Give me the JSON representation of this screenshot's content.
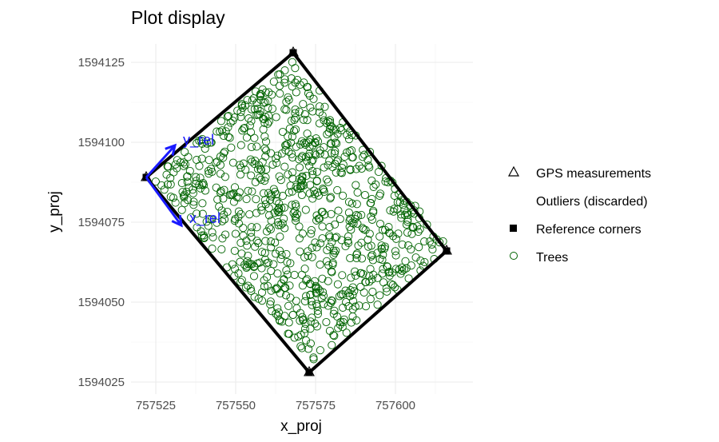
{
  "chart_data": {
    "type": "scatter",
    "title": "Plot display",
    "xlabel": "x_proj",
    "ylabel": "y_proj",
    "xlim": [
      757518,
      757617
    ],
    "ylim": [
      1594024,
      1594128
    ],
    "x_ticks": [
      757525,
      757550,
      757575,
      757600
    ],
    "x_tick_labels": [
      "757525",
      "757550",
      "757575",
      "757600"
    ],
    "y_ticks": [
      1594025,
      1594050,
      1594075,
      1594100,
      1594125
    ],
    "y_tick_labels": [
      "1594025",
      "1594050",
      "1594075",
      "1594100",
      "1594125"
    ],
    "grid": true,
    "legend_position": "right",
    "legend": [
      {
        "label": "GPS measurements",
        "symbol": "open-triangle"
      },
      {
        "label": "Outliers (discarded)",
        "symbol": "none"
      },
      {
        "label": "Reference corners",
        "symbol": "filled-square"
      },
      {
        "label": "Trees",
        "symbol": "open-circle"
      }
    ],
    "reference_corners": [
      {
        "x": 757522,
        "y": 1594089
      },
      {
        "x": 757568,
        "y": 1594128
      },
      {
        "x": 757616,
        "y": 1594066
      },
      {
        "x": 757573,
        "y": 1594028
      }
    ],
    "gps_measurements": [
      {
        "x": 757522,
        "y": 1594089
      },
      {
        "x": 757568,
        "y": 1594128
      },
      {
        "x": 757616,
        "y": 1594066
      },
      {
        "x": 757573,
        "y": 1594028
      }
    ],
    "axes_arrows": [
      {
        "label": "y_rel",
        "from": {
          "x": 757522,
          "y": 1594089
        },
        "to": {
          "x": 757531,
          "y": 1594099
        }
      },
      {
        "label": "x_rel",
        "from": {
          "x": 757522,
          "y": 1594089
        },
        "to": {
          "x": 757533,
          "y": 1594074
        }
      }
    ],
    "trees": {
      "count": 900,
      "distribution": "uniform within plot polygon"
    },
    "colors": {
      "trees": "#006400",
      "corners": "#000000",
      "arrows": "#1a1aff",
      "grid": "#ebebeb",
      "tick_text": "#4d4d4d"
    }
  }
}
